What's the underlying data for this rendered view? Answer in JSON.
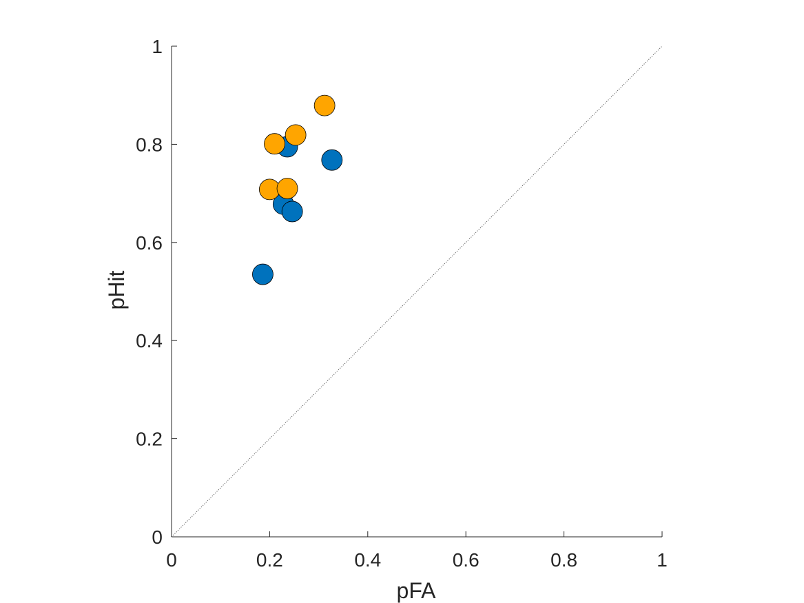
{
  "chart_data": {
    "type": "scatter",
    "title": "",
    "xlabel": "pFA",
    "ylabel": "pHit",
    "xlim": [
      0,
      1
    ],
    "ylim": [
      0,
      1
    ],
    "xticks": [
      "0",
      "0.2",
      "0.4",
      "0.6",
      "0.8",
      "1"
    ],
    "yticks": [
      "0",
      "0.2",
      "0.4",
      "0.6",
      "0.8",
      "1"
    ],
    "grid": false,
    "legend": "none",
    "reference_line": {
      "from": [
        0,
        0
      ],
      "to": [
        1,
        1
      ],
      "style": "dotted"
    },
    "series": [
      {
        "color": "#0072BD",
        "points": [
          {
            "x": 0.186,
            "y": 0.535
          },
          {
            "x": 0.228,
            "y": 0.678
          },
          {
            "x": 0.246,
            "y": 0.663
          },
          {
            "x": 0.236,
            "y": 0.795
          },
          {
            "x": 0.327,
            "y": 0.768
          }
        ]
      },
      {
        "color": "#FFA500",
        "points": [
          {
            "x": 0.2,
            "y": 0.708
          },
          {
            "x": 0.236,
            "y": 0.71
          },
          {
            "x": 0.21,
            "y": 0.801
          },
          {
            "x": 0.253,
            "y": 0.819
          },
          {
            "x": 0.312,
            "y": 0.879
          }
        ]
      }
    ]
  }
}
